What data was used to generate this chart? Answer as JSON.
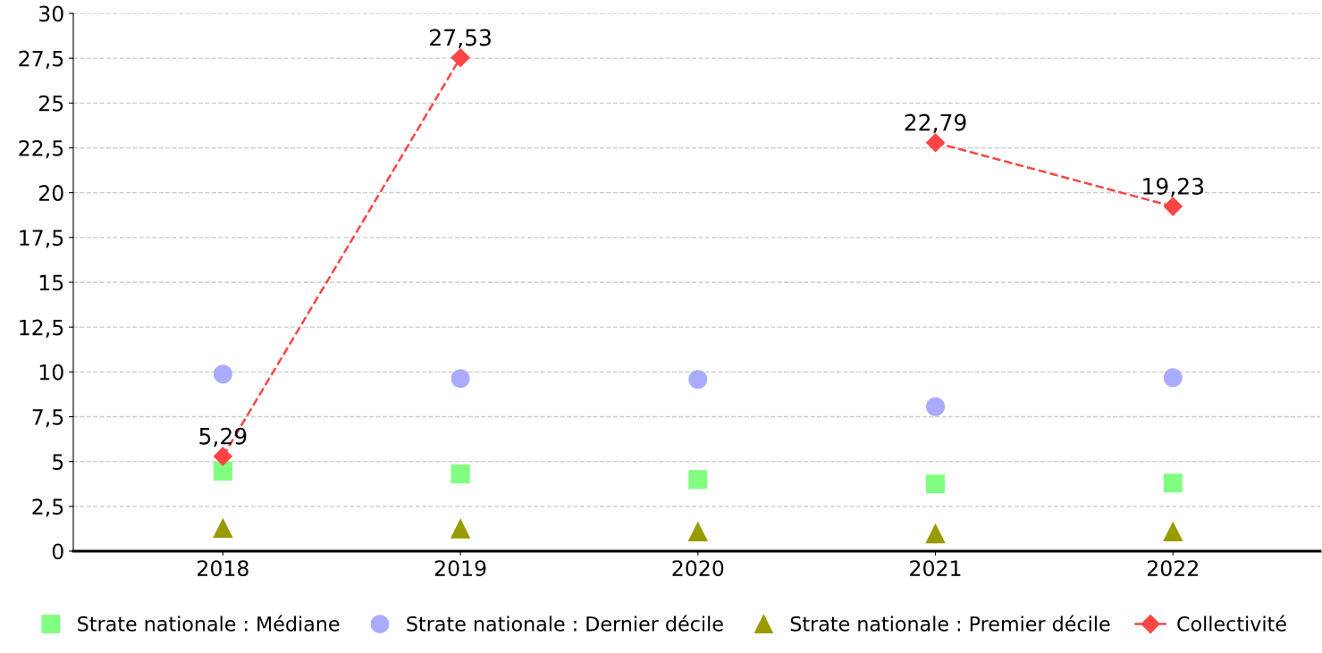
{
  "chart_data": {
    "type": "scatter",
    "categories": [
      "2018",
      "2019",
      "2020",
      "2021",
      "2022"
    ],
    "series": [
      {
        "name": "Strate nationale : Médiane",
        "color": "#80ff80",
        "marker": "square",
        "values": [
          4.46,
          4.31,
          4.0,
          3.75,
          3.8
        ]
      },
      {
        "name": "Strate nationale : Dernier décile",
        "color": "#aaaaff",
        "marker": "circle",
        "values": [
          9.88,
          9.63,
          9.58,
          8.06,
          9.68
        ]
      },
      {
        "name": "Strate nationale : Premier décile",
        "color": "#999900",
        "marker": "triangle",
        "values": [
          1.3,
          1.27,
          1.1,
          1.0,
          1.1
        ]
      },
      {
        "name": "Collectivité",
        "type": "line",
        "color": "#ff4444",
        "marker": "diamond",
        "line_style": "dashed",
        "values": [
          5.29,
          27.53,
          null,
          22.79,
          19.23
        ],
        "value_labels": [
          "5,29",
          "27,53",
          null,
          "22,79",
          "19,23"
        ]
      }
    ],
    "ylim": [
      0,
      30
    ],
    "yticks": [
      0,
      {
        "value": 2.5,
        "label": "2,5"
      },
      5,
      {
        "value": 7.5,
        "label": "7,5"
      },
      10,
      {
        "value": 12.5,
        "label": "12,5"
      },
      15,
      {
        "value": 17.5,
        "label": "17,5"
      },
      20,
      {
        "value": 22.5,
        "label": "22,5"
      },
      25,
      {
        "value": 27.5,
        "label": "27,5"
      },
      30
    ],
    "grid": "y",
    "legend": "bottom"
  }
}
